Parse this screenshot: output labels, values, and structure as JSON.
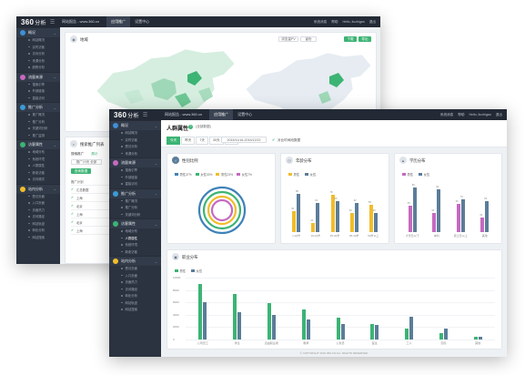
{
  "back_window": {
    "logo": "360",
    "logo_sub": "分析",
    "site_label": "网站报告 - www.360.cn",
    "tabs": [
      {
        "label": "应用推广",
        "active": true
      },
      {
        "label": "设置中心",
        "active": false
      }
    ],
    "top_right": [
      "系统消息",
      "帮助",
      "Hello, liuzhigan",
      "退出"
    ],
    "sidebar": [
      {
        "label": "概况",
        "color": "#3f8fd6",
        "items": [
          "网站概况",
          "实时访客",
          "访问分析",
          "来源分析",
          "趋势分析"
        ]
      },
      {
        "label": "流量来源",
        "color": "#c56ac0",
        "items": [
          "搜索引擎",
          "外部链接",
          "直接访问"
        ]
      },
      {
        "label": "推广分析",
        "color": "#3a9bd8",
        "items": [
          "推广概况",
          "推广分析",
          "关键词分析",
          "推广监测"
        ]
      },
      {
        "label": "访客属性",
        "color": "#3cb474",
        "items": [
          "地域分布",
          "系统环境",
          "人群属性",
          "新老访客",
          "访问频次"
        ]
      },
      {
        "label": "站内分析",
        "color": "#f0bd2b",
        "items": [
          "受访页面",
          "入口页面",
          "页面热力",
          "访问路径",
          "网站轨迹",
          "转化分析",
          "网站搜索"
        ]
      }
    ],
    "map_card": {
      "title": "地域"
    },
    "selects": [
      "浏览量PV",
      "省份"
    ],
    "buttons": [
      "下载",
      "导出"
    ],
    "table_card": {
      "title": "搜索推广列表",
      "tabs": [
        "搜索推广",
        "展示"
      ],
      "filter": "推广计划 全部",
      "button": "查询数据",
      "rows": [
        "推广计划",
        "汇总数据",
        "上海",
        "北京",
        "上海",
        "北京",
        "上海"
      ]
    }
  },
  "front_window": {
    "logo": "360",
    "logo_sub": "分析",
    "site_label": "网站报告 - www.360.cn",
    "tabs": [
      {
        "label": "应用推广",
        "active": true
      },
      {
        "label": "设置中心",
        "active": false
      }
    ],
    "top_right": [
      "系统消息",
      "帮助",
      "Hello, liuzhigan",
      "退出"
    ],
    "sidebar": [
      {
        "label": "概况",
        "color": "#3f8fd6",
        "items": [
          "网站概况",
          "实时访客",
          "受访分析",
          "来源分析"
        ]
      },
      {
        "label": "流量来源",
        "color": "#c56ac0",
        "items": [
          "搜索引擎",
          "外部链接",
          "直接访问"
        ]
      },
      {
        "label": "推广分析",
        "color": "#3a9bd8",
        "items": [
          "推广概况",
          "推广分析",
          "关键词分析"
        ]
      },
      {
        "label": "访客属性",
        "color": "#3cb474",
        "items": [
          "地域分布",
          "人群属性",
          "系统环境",
          "新老访客"
        ],
        "active_item": 1
      },
      {
        "label": "站内分析",
        "color": "#f0bd2b",
        "items": [
          "受访页面",
          "入口页面",
          "页面热力",
          "访问路径",
          "转化分析",
          "网站轨迹",
          "网站搜索"
        ]
      }
    ],
    "page_title": "人群属性",
    "page_subtitle": "(全部数据)",
    "date_tabs": [
      "今天",
      "昨天",
      "7天",
      "30天",
      "今年"
    ],
    "date_range": "2015/11/16-2015/12/22",
    "compare_label": "对比时间段数据",
    "gender_card": {
      "title": "性别比例",
      "legend": [
        "男性37%",
        "女性33%",
        "男性23%",
        "女性7%"
      ]
    },
    "age_card": {
      "title": "年龄分布",
      "legend": [
        "男性",
        "女性"
      ],
      "labels": [
        "1-18岁",
        "19-24岁",
        "25-34岁",
        "35-49岁",
        "50岁以上"
      ]
    },
    "edu_card": {
      "title": "学历分布",
      "legend": [
        "男性",
        "女性"
      ],
      "labels": [
        "大专及以下",
        "本科",
        "硕士及以上",
        "其他"
      ]
    },
    "job_card": {
      "title": "职业分布",
      "legend": [
        "男性",
        "女性"
      ],
      "y_ticks": [
        "10000",
        "8000",
        "6000",
        "4000",
        "2000",
        "0"
      ],
      "labels": [
        "公司员工",
        "学生",
        "自由职业者",
        "教师",
        "公务员",
        "医生",
        "工人",
        "农民",
        "其他"
      ]
    },
    "footer": "© COPYRIGHT 2015 360.CN ALL RIGHTS RESERVED"
  },
  "chart_data": [
    {
      "type": "pie",
      "title": "性别比例",
      "categories": [
        "男性",
        "女性",
        "男性",
        "女性"
      ],
      "values": [
        37,
        33,
        23,
        7
      ],
      "colors": [
        "#3d82b8",
        "#3cb474",
        "#f0bd2b",
        "#c56ac0"
      ]
    },
    {
      "type": "bar",
      "title": "年龄分布",
      "categories": [
        "1-18岁",
        "19-24岁",
        "25-34岁",
        "35-49岁",
        "50岁以上"
      ],
      "series": [
        {
          "name": "男性",
          "color": "#f0bd2b",
          "values": [
            45,
            20,
            78,
            40,
            58
          ]
        },
        {
          "name": "女性",
          "color": "#5b7d99",
          "values": [
            80,
            62,
            66,
            62,
            40
          ]
        }
      ]
    },
    {
      "type": "bar",
      "title": "学历分布",
      "categories": [
        "大专及以下",
        "本科",
        "硕士及以上",
        "其他"
      ],
      "series": [
        {
          "name": "男性",
          "color": "#c56ac0",
          "values": [
            55,
            40,
            60,
            30
          ]
        },
        {
          "name": "女性",
          "color": "#5b7d99",
          "values": [
            95,
            90,
            70,
            65
          ]
        }
      ]
    },
    {
      "type": "bar",
      "title": "职业分布",
      "categories": [
        "公司员工",
        "学生",
        "自由职业者",
        "教师",
        "公务员",
        "医生",
        "工人",
        "农民",
        "其他"
      ],
      "ylim": [
        0,
        10000
      ],
      "series": [
        {
          "name": "男性",
          "color": "#3cb474",
          "values": [
            8900,
            7400,
            5900,
            4800,
            3500,
            2500,
            1800,
            1000,
            400
          ]
        },
        {
          "name": "女性",
          "color": "#5b7d99",
          "values": [
            6000,
            4400,
            4000,
            3300,
            2500,
            2300,
            3700,
            1700,
            500
          ]
        }
      ]
    }
  ]
}
